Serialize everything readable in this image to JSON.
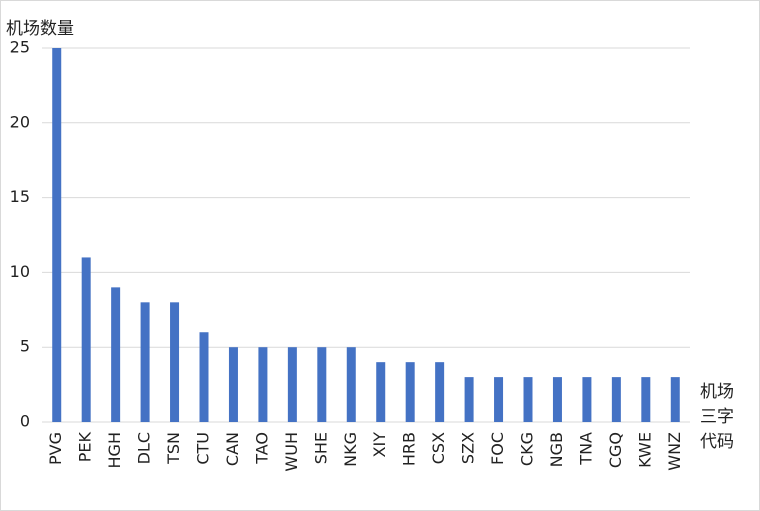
{
  "chart_data": {
    "type": "bar",
    "y_label": "机场数量",
    "x_label": "机场三字代码",
    "categories": [
      "PVG",
      "PEK",
      "HGH",
      "DLC",
      "TSN",
      "CTU",
      "CAN",
      "TAO",
      "WUH",
      "SHE",
      "NKG",
      "XIY",
      "HRB",
      "CSX",
      "SZX",
      "FOC",
      "CKG",
      "NGB",
      "TNA",
      "CGQ",
      "KWE",
      "WNZ"
    ],
    "values": [
      25,
      11,
      9,
      8,
      8,
      6,
      5,
      5,
      5,
      5,
      5,
      4,
      4,
      4,
      3,
      3,
      3,
      3,
      3,
      3,
      3,
      3
    ],
    "color": "#4472c4",
    "ylim": [
      0,
      25
    ],
    "yticks": [
      0,
      5,
      10,
      15,
      20,
      25
    ],
    "grid": true
  }
}
